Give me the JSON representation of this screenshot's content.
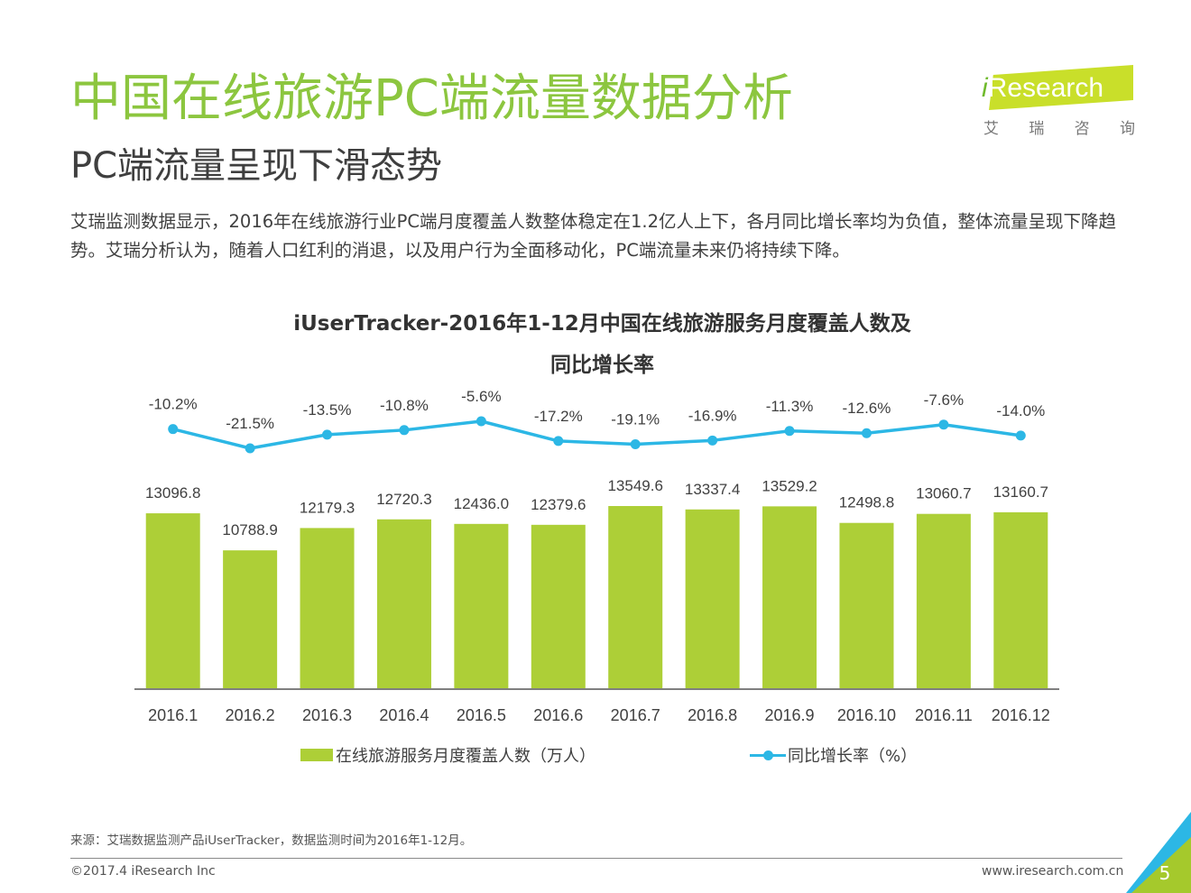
{
  "header": {
    "title": "中国在线旅游PC端流量数据分析",
    "subtitle": "PC端流量呈现下滑态势",
    "description": "艾瑞监测数据显示，2016年在线旅游行业PC端月度覆盖人数整体稳定在1.2亿人上下，各月同比增长率均为负值，整体流量呈现下降趋势。艾瑞分析认为，随着人口红利的消退，以及用户行为全面移动化，PC端流量未来仍将持续下降。"
  },
  "logo": {
    "prefix": "i",
    "brand": "Research",
    "chars": [
      "艾",
      "瑞",
      "咨",
      "询"
    ]
  },
  "chart_data": {
    "type": "bar",
    "title_line1": "iUserTracker-2016年1-12月中国在线旅游服务月度覆盖人数及",
    "title_line2": "同比增长率",
    "categories": [
      "2016.1",
      "2016.2",
      "2016.3",
      "2016.4",
      "2016.5",
      "2016.6",
      "2016.7",
      "2016.8",
      "2016.9",
      "2016.10",
      "2016.11",
      "2016.12"
    ],
    "series": [
      {
        "name": "在线旅游服务月度覆盖人数（万人）",
        "type": "bar",
        "values": [
          13096.8,
          10788.9,
          12179.3,
          12720.3,
          12436.0,
          12379.6,
          13549.6,
          13337.4,
          13529.2,
          12498.8,
          13060.7,
          13160.7
        ],
        "labels": [
          "13096.8",
          "10788.9",
          "12179.3",
          "12720.3",
          "12436.0",
          "12379.6",
          "13549.6",
          "13337.4",
          "13529.2",
          "12498.8",
          "13060.7",
          "13160.7"
        ],
        "color": "#adcf37"
      },
      {
        "name": "同比增长率（%）",
        "type": "line",
        "values": [
          -10.2,
          -21.5,
          -13.5,
          -10.8,
          -5.6,
          -17.2,
          -19.1,
          -16.9,
          -11.3,
          -12.6,
          -7.6,
          -14.0
        ],
        "labels": [
          "-10.2%",
          "-21.5%",
          "-13.5%",
          "-10.8%",
          "-5.6%",
          "-17.2%",
          "-19.1%",
          "-16.9%",
          "-11.3%",
          "-12.6%",
          "-7.6%",
          "-14.0%"
        ],
        "color": "#2cb7e5"
      }
    ],
    "ylim_bar": [
      0,
      14000
    ],
    "ylim_line": [
      -25,
      0
    ]
  },
  "legend": {
    "bar_label": "在线旅游服务月度覆盖人数（万人）",
    "line_label": "同比增长率（%）"
  },
  "footer": {
    "source": "来源：艾瑞数据监测产品iUserTracker，数据监测时间为2016年1-12月。",
    "copyright": "©2017.4 iResearch Inc",
    "website": "www.iresearch.com.cn",
    "page_number": "5"
  },
  "colors": {
    "accent": "#8cc63f",
    "corner_green": "#a5c92c",
    "corner_blue": "#2cb7e5"
  }
}
